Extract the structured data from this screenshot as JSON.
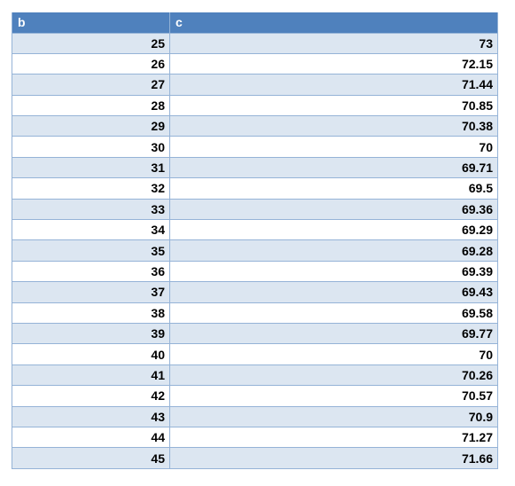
{
  "table": {
    "columns": [
      "b",
      "c"
    ],
    "rows": [
      [
        "25",
        "73"
      ],
      [
        "26",
        "72.15"
      ],
      [
        "27",
        "71.44"
      ],
      [
        "28",
        "70.85"
      ],
      [
        "29",
        "70.38"
      ],
      [
        "30",
        "70"
      ],
      [
        "31",
        "69.71"
      ],
      [
        "32",
        "69.5"
      ],
      [
        "33",
        "69.36"
      ],
      [
        "34",
        "69.29"
      ],
      [
        "35",
        "69.28"
      ],
      [
        "36",
        "69.39"
      ],
      [
        "37",
        "69.43"
      ],
      [
        "38",
        "69.58"
      ],
      [
        "39",
        "69.77"
      ],
      [
        "40",
        "70"
      ],
      [
        "41",
        "70.26"
      ],
      [
        "42",
        "70.57"
      ],
      [
        "43",
        "70.9"
      ],
      [
        "44",
        "71.27"
      ],
      [
        "45",
        "71.66"
      ]
    ]
  },
  "colors": {
    "header_bg": "#4f81bd",
    "header_text": "#ffffff",
    "band_bg": "#dce6f1",
    "plain_bg": "#ffffff",
    "border": "#95b3d7"
  }
}
